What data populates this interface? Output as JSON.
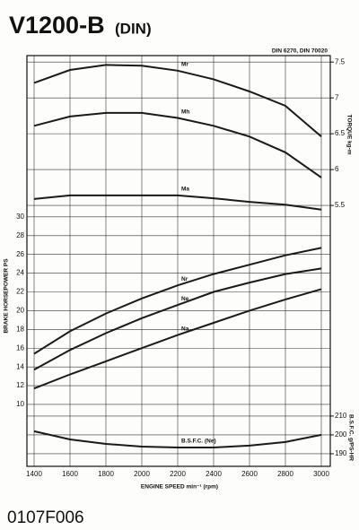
{
  "chart_data": {
    "type": "line",
    "title": "V1200-B",
    "subtitle": "(DIN)",
    "annotation": "DIN 6270, DIN 70020",
    "footer": "0107F006",
    "x_label": "ENGINE SPEED min⁻¹ (rpm)",
    "y_label": "BRAKE HORSEPOWER PS",
    "y2_label": "TORQUE kg-m",
    "y3_label": "B.S.F.C. g/PS-HR",
    "x": [
      1400,
      1600,
      1800,
      2000,
      2200,
      2400,
      2600,
      2800,
      3000
    ],
    "xlim": [
      1360,
      3050
    ],
    "xticks": [
      1400,
      1600,
      1800,
      2000,
      2200,
      2400,
      2600,
      2800,
      3000
    ],
    "ylim": [
      3.4,
      47.2
    ],
    "yticks": [
      10,
      12,
      14,
      16,
      18,
      20,
      22,
      24,
      26,
      28,
      30
    ],
    "y2lim": [
      1.86,
      7.59
    ],
    "y2ticks": [
      5.5,
      6,
      6.5,
      7,
      7.5
    ],
    "y3lim": [
      183.3,
      401.4
    ],
    "y3ticks": [
      190,
      200,
      210
    ],
    "grid": true,
    "series": [
      {
        "name": "Mr",
        "color": "#1a1a1a",
        "axis": "y2",
        "values": [
          7.21,
          7.39,
          7.46,
          7.45,
          7.38,
          7.26,
          7.09,
          6.89,
          6.46
        ]
      },
      {
        "name": "Mh",
        "color": "#1a1a1a",
        "axis": "y2",
        "values": [
          6.61,
          6.74,
          6.79,
          6.79,
          6.72,
          6.61,
          6.46,
          6.24,
          5.89
        ]
      },
      {
        "name": "Ma",
        "color": "#1a1a1a",
        "axis": "y2",
        "values": [
          5.59,
          5.64,
          5.64,
          5.64,
          5.64,
          5.6,
          5.55,
          5.51,
          5.44
        ]
      },
      {
        "name": "Nr",
        "color": "#1a1a1a",
        "axis": "y",
        "values": [
          15.4,
          17.8,
          19.7,
          21.3,
          22.7,
          23.9,
          24.9,
          25.9,
          26.7
        ]
      },
      {
        "name": "Ne",
        "color": "#1a1a1a",
        "axis": "y",
        "values": [
          13.7,
          15.8,
          17.6,
          19.2,
          20.6,
          22.0,
          23.0,
          23.9,
          24.5
        ]
      },
      {
        "name": "Na",
        "color": "#1a1a1a",
        "axis": "y",
        "values": [
          11.7,
          13.2,
          14.6,
          16.0,
          17.4,
          18.7,
          20.0,
          21.2,
          22.3
        ]
      },
      {
        "name": "B.S.F.C. (Ne)",
        "color": "#1a1a1a",
        "axis": "y3",
        "values": [
          201.9,
          197.6,
          195.2,
          193.8,
          193.3,
          193.3,
          194.3,
          196.2,
          200.0
        ]
      }
    ]
  }
}
